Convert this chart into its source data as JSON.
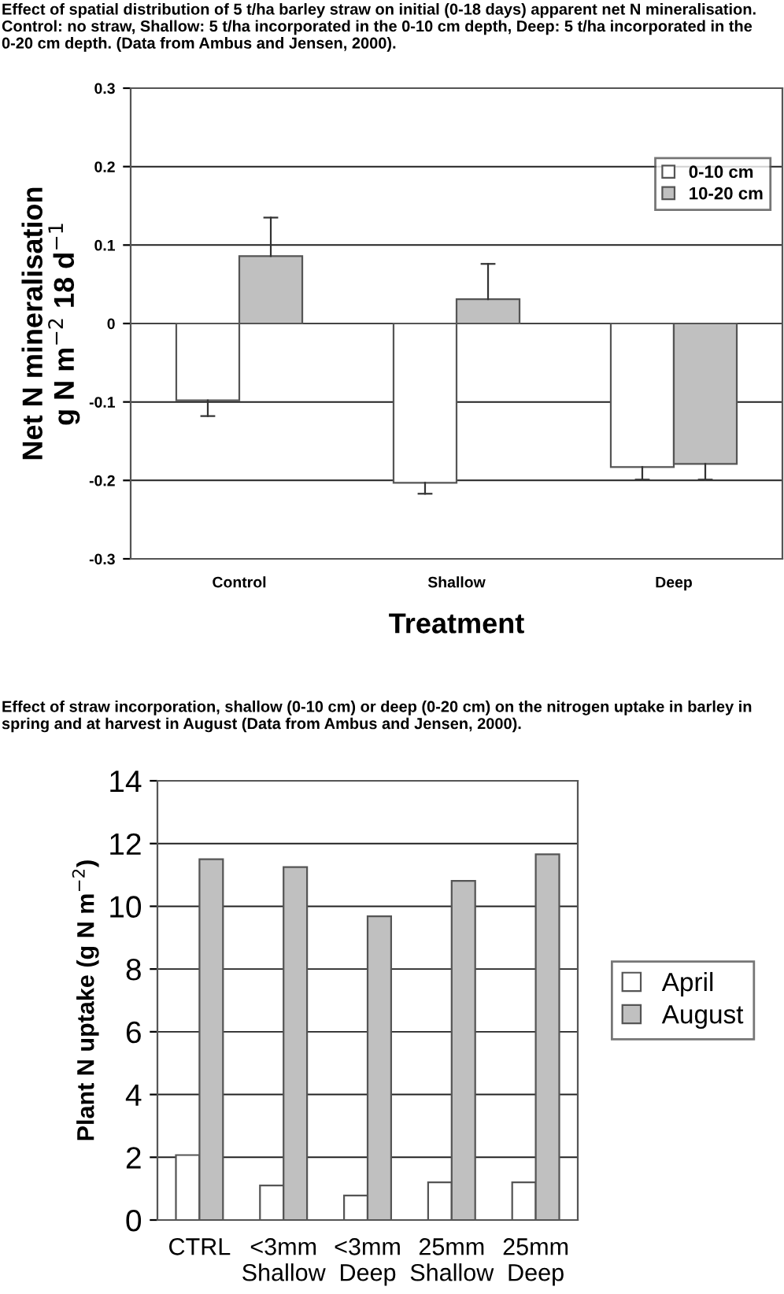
{
  "chart_data": [
    {
      "type": "bar",
      "title": "Effect of spatial distribution of 5 t/ha barley straw on initial (0-18 days) apparent net N mineralisation. Control: no straw, Shallow: 5 t/ha incorporated in the 0-10 cm depth, Deep: 5 t/ha incorporated in the 0-20 cm depth. (Data from Ambus and Jensen, 2000).",
      "xlabel": "Treatment",
      "ylabel": "Net N mineralisation\ng N m$^{−2}$ 18 d$^{−1}$",
      "categories": [
        "Control",
        "Shallow",
        "Deep"
      ],
      "series": [
        {
          "name": "0-10 cm",
          "color": "#ffffff",
          "values": [
            -0.098,
            -0.203,
            -0.183
          ],
          "errors": [
            [
              -0.118,
              -0.098
            ],
            [
              -0.217,
              -0.203
            ],
            [
              -0.199,
              -0.183
            ]
          ]
        },
        {
          "name": "10-20 cm",
          "color": "#c0c0c0",
          "values": [
            0.086,
            0.031,
            -0.179
          ],
          "errors": [
            [
              0.086,
              0.135
            ],
            [
              0.031,
              0.076
            ],
            [
              -0.199,
              -0.179
            ]
          ]
        }
      ],
      "ylim": [
        -0.3,
        0.3
      ],
      "yticks": [
        -0.3,
        -0.2,
        -0.1,
        0,
        0.1,
        0.2,
        0.3
      ],
      "grid": "y",
      "legend": "top right"
    },
    {
      "type": "bar",
      "title": "Effect of straw incorporation, shallow (0-10 cm) or deep (0-20 cm) on the nitrogen uptake in barley in spring and at harvest in August (Data from Ambus and Jensen, 2000).",
      "ylabel": "Plant N uptake (g N m$^{−2}$)",
      "categories": [
        "CTRL",
        "<3mm\nShallow",
        "<3mm\nDeep",
        "25mm\nShallow",
        "25mm\nDeep"
      ],
      "series": [
        {
          "name": "April",
          "color": "#ffffff",
          "values": [
            2.07,
            1.1,
            0.78,
            1.2,
            1.2
          ]
        },
        {
          "name": "August",
          "color": "#c0c0c0",
          "values": [
            11.5,
            11.25,
            9.68,
            10.81,
            11.66
          ]
        }
      ],
      "ylim": [
        0,
        14
      ],
      "yticks": [
        0,
        2,
        4,
        6,
        8,
        10,
        12,
        14
      ],
      "grid": "y",
      "legend": "right"
    }
  ]
}
